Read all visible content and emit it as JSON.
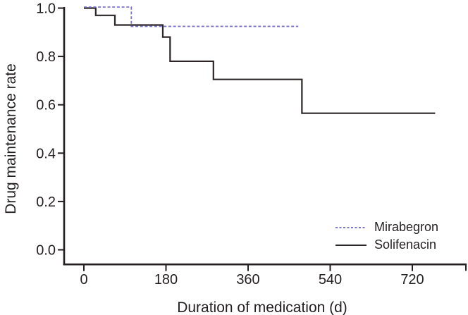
{
  "figure": {
    "title": ""
  },
  "colors": {
    "axis": "#231f20",
    "text": "#231f20",
    "mirabegron": "#7c78c9",
    "solifenacin": "#2c2627",
    "background": "#ffffff"
  },
  "legend": {
    "items": [
      {
        "label": "Mirabegron",
        "style": "dashed",
        "color": "#7c78c9"
      },
      {
        "label": "Solifenacin",
        "style": "solid",
        "color": "#2c2627"
      }
    ]
  },
  "chart_data": {
    "type": "line",
    "subtype": "kaplan-meier-step",
    "title": "",
    "xlabel": "Duration of medication (d)",
    "ylabel": "Drug maintenance rate",
    "xlim": [
      0,
      840
    ],
    "ylim": [
      0.0,
      1.0
    ],
    "grid": false,
    "legend_position": "lower right inside",
    "x_ticks": [
      {
        "value": 0,
        "label": "0"
      },
      {
        "value": 180,
        "label": "180"
      },
      {
        "value": 360,
        "label": "360"
      },
      {
        "value": 540,
        "label": "540"
      },
      {
        "value": 720,
        "label": "720"
      }
    ],
    "y_ticks": [
      {
        "value": 1.0,
        "label": "1.0"
      },
      {
        "value": 0.8,
        "label": "0.8"
      },
      {
        "value": 0.6,
        "label": "0.6"
      },
      {
        "value": 0.4,
        "label": "0.4"
      },
      {
        "value": 0.2,
        "label": "0.2"
      },
      {
        "value": 0.0,
        "label": "0.0"
      }
    ],
    "series": [
      {
        "name": "Mirabegron",
        "line_style": "dashed",
        "color": "#7c78c9",
        "points": [
          [
            0,
            1.0
          ],
          [
            104,
            1.0
          ],
          [
            104,
            0.92
          ],
          [
            470,
            0.92
          ]
        ]
      },
      {
        "name": "Solifenacin",
        "line_style": "solid",
        "color": "#2c2627",
        "points": [
          [
            0,
            1.0
          ],
          [
            26,
            1.0
          ],
          [
            26,
            0.97
          ],
          [
            68,
            0.97
          ],
          [
            68,
            0.93
          ],
          [
            173,
            0.93
          ],
          [
            173,
            0.88
          ],
          [
            189,
            0.88
          ],
          [
            189,
            0.78
          ],
          [
            284,
            0.78
          ],
          [
            284,
            0.705
          ],
          [
            478,
            0.705
          ],
          [
            478,
            0.565
          ],
          [
            770,
            0.565
          ]
        ]
      }
    ]
  }
}
